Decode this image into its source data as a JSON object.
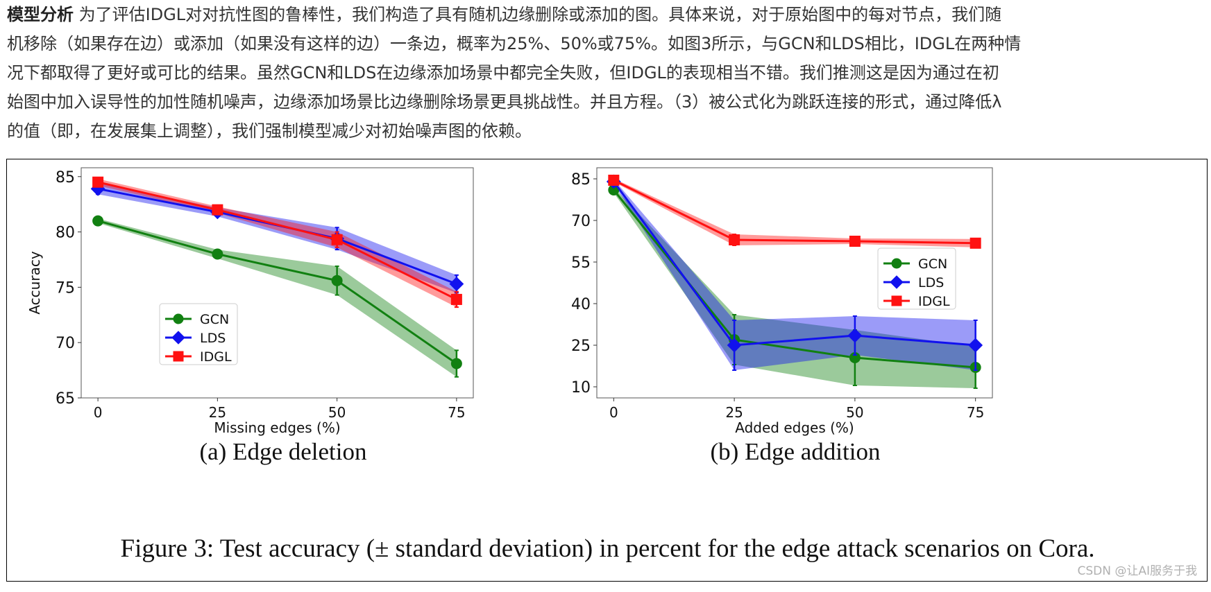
{
  "paragraph": {
    "lead": "模型分析",
    "lines": [
      "为了评估IDGL对对抗性图的鲁棒性，我们构造了具有随机边缘删除或添加的图。具体来说，对于原始图中的每对节点，我们随",
      "机移除（如果存在边）或添加（如果没有这样的边）一条边，概率为25%、50%或75%。如图3所示，与GCN和LDS相比，IDGL在两种情",
      "况下都取得了更好或可比的结果。虽然GCN和LDS在边缘添加场景中都完全失败，但IDGL的表现相当不错。我们推测这是因为通过在初",
      "始图中加入误导性的加性随机噪声，边缘添加场景比边缘删除场景更具挑战性。并且方程。（3）被公式化为跳跃连接的形式，通过降低λ",
      "的值（即，在发展集上调整），我们强制模型减少对初始噪声图的依赖。"
    ]
  },
  "colors": {
    "GCN": "#118011",
    "LDS": "#1111ee",
    "IDGL": "#ff1111"
  },
  "chart_data": [
    {
      "type": "line",
      "subcaption": "(a) Edge deletion",
      "xlabel": "Missing edges (%)",
      "ylabel": "Accuracy",
      "x": [
        0,
        25,
        50,
        75
      ],
      "xticks": [
        "0",
        "25",
        "50",
        "75"
      ],
      "yticks": [
        65,
        70,
        75,
        80,
        85
      ],
      "xlim": [
        -3.5,
        78.5
      ],
      "ylim": [
        65,
        85.8
      ],
      "legend_position": "lower-left",
      "series": [
        {
          "name": "GCN",
          "marker": "circle",
          "values": [
            81.0,
            78.0,
            75.6,
            68.1
          ],
          "std": [
            0.2,
            0.4,
            1.3,
            1.2
          ]
        },
        {
          "name": "LDS",
          "marker": "diamond",
          "values": [
            83.9,
            81.8,
            79.4,
            75.3
          ],
          "std": [
            0.5,
            0.4,
            1.0,
            0.8
          ]
        },
        {
          "name": "IDGL",
          "marker": "square",
          "values": [
            84.5,
            82.0,
            79.3,
            73.9
          ],
          "std": [
            0.3,
            0.3,
            0.7,
            0.7
          ]
        }
      ]
    },
    {
      "type": "line",
      "subcaption": "(b) Edge addition",
      "xlabel": "Added edges (%)",
      "ylabel": "Accuracy",
      "x": [
        0,
        25,
        50,
        75
      ],
      "xticks": [
        "0",
        "25",
        "50",
        "75"
      ],
      "yticks": [
        10,
        25,
        40,
        55,
        70,
        85
      ],
      "xlim": [
        -3.5,
        78.5
      ],
      "ylim": [
        6,
        89
      ],
      "legend_position": "center-right",
      "series": [
        {
          "name": "GCN",
          "marker": "circle",
          "values": [
            81.0,
            27.0,
            20.5,
            17.0
          ],
          "std": [
            1.0,
            9.0,
            10.0,
            7.5
          ]
        },
        {
          "name": "LDS",
          "marker": "diamond",
          "values": [
            84.0,
            25.0,
            28.5,
            25.0
          ],
          "std": [
            0.8,
            9.0,
            7.0,
            9.0
          ]
        },
        {
          "name": "IDGL",
          "marker": "square",
          "values": [
            84.5,
            63.0,
            62.5,
            61.8
          ],
          "std": [
            0.6,
            2.0,
            1.0,
            1.5
          ]
        }
      ]
    }
  ],
  "figure_caption": "Figure 3: Test accuracy (± standard deviation) in percent for the edge attack scenarios on Cora.",
  "watermark": "CSDN @让AI服务于我"
}
